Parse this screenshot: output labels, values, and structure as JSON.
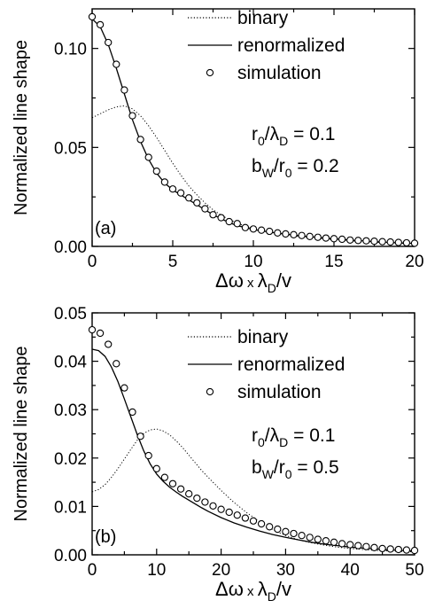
{
  "chart_data": [
    {
      "type": "line",
      "panel_label": "(a)",
      "xlabel": {
        "main": "Δω x λ",
        "sub": "D",
        "tail": "/v"
      },
      "ylabel": "Normalized line shape",
      "xlim": [
        0,
        20
      ],
      "ylim": [
        0,
        0.12
      ],
      "xticks": [
        0,
        5,
        10,
        15,
        20
      ],
      "xtick_labels": [
        "0",
        "5",
        "10",
        "15",
        "20"
      ],
      "yticks": [
        0,
        0.05,
        0.1
      ],
      "ytick_labels": [
        "0.00",
        "0.05",
        "0.10"
      ],
      "legend": [
        "binary",
        "renormalized",
        "simulation"
      ],
      "annotations": [
        {
          "base": "r",
          "sub1": "0",
          "mid": "/λ",
          "sub2": "D",
          "tail": " = 0.1"
        },
        {
          "base": "b",
          "sub1": "W",
          "mid": "/r",
          "sub2": "0",
          "tail": " = 0.2"
        }
      ],
      "series": [
        {
          "name": "binary",
          "style": "dotted",
          "x": [
            0,
            0.5,
            1,
            1.5,
            2,
            2.5,
            3,
            3.5,
            4,
            4.5,
            5,
            5.5,
            6,
            6.5,
            7,
            7.5,
            8,
            8.5,
            9,
            9.5,
            10,
            11,
            12,
            13,
            14,
            15,
            16,
            17,
            18,
            19,
            20
          ],
          "y": [
            0.065,
            0.067,
            0.069,
            0.0705,
            0.071,
            0.0695,
            0.066,
            0.061,
            0.055,
            0.0485,
            0.042,
            0.036,
            0.0305,
            0.026,
            0.022,
            0.0185,
            0.0158,
            0.0135,
            0.0117,
            0.0102,
            0.009,
            0.0072,
            0.006,
            0.0049,
            0.0041,
            0.0034,
            0.0028,
            0.0023,
            0.0019,
            0.0016,
            0.0013
          ]
        },
        {
          "name": "renormalized",
          "style": "solid",
          "x": [
            0,
            0.5,
            1,
            1.5,
            2,
            2.5,
            3,
            3.5,
            4,
            4.5,
            5,
            5.5,
            6,
            6.5,
            7,
            7.5,
            8,
            8.5,
            9,
            9.5,
            10,
            11,
            12,
            13,
            14,
            15,
            16,
            17,
            18,
            19,
            20
          ],
          "y": [
            0.115,
            0.111,
            0.102,
            0.09,
            0.077,
            0.064,
            0.053,
            0.044,
            0.037,
            0.032,
            0.0285,
            0.026,
            0.0235,
            0.021,
            0.0185,
            0.016,
            0.014,
            0.012,
            0.0105,
            0.0095,
            0.0085,
            0.0072,
            0.0062,
            0.0053,
            0.0045,
            0.0038,
            0.0032,
            0.0027,
            0.0022,
            0.0018,
            0.0015
          ]
        },
        {
          "name": "simulation",
          "style": "open-circle",
          "x": [
            0,
            0.5,
            1,
            1.5,
            2,
            2.5,
            3,
            3.5,
            4,
            4.5,
            5,
            5.5,
            6,
            6.5,
            7,
            7.5,
            8,
            8.5,
            9,
            9.5,
            10,
            10.5,
            11,
            11.5,
            12,
            12.5,
            13,
            13.5,
            14,
            14.5,
            15,
            15.5,
            16,
            16.5,
            17,
            17.5,
            18,
            18.5,
            19,
            19.5,
            20
          ],
          "y": [
            0.116,
            0.112,
            0.103,
            0.092,
            0.079,
            0.066,
            0.054,
            0.045,
            0.038,
            0.0325,
            0.029,
            0.027,
            0.0245,
            0.022,
            0.019,
            0.016,
            0.0145,
            0.0125,
            0.0115,
            0.0095,
            0.0088,
            0.0082,
            0.0076,
            0.0068,
            0.0063,
            0.0059,
            0.0055,
            0.005,
            0.0046,
            0.0042,
            0.0039,
            0.0036,
            0.0032,
            0.003,
            0.0028,
            0.0026,
            0.0024,
            0.0022,
            0.002,
            0.0018,
            0.0016
          ]
        }
      ]
    },
    {
      "type": "line",
      "panel_label": "(b)",
      "xlabel": {
        "main": "Δω x λ",
        "sub": "D",
        "tail": "/v"
      },
      "ylabel": "Normalized line shape",
      "xlim": [
        0,
        50
      ],
      "ylim": [
        0,
        0.05
      ],
      "xticks": [
        0,
        10,
        20,
        30,
        40,
        50
      ],
      "xtick_labels": [
        "0",
        "10",
        "20",
        "30",
        "40",
        "50"
      ],
      "yticks": [
        0,
        0.01,
        0.02,
        0.03,
        0.04,
        0.05
      ],
      "ytick_labels": [
        "0.00",
        "0.01",
        "0.02",
        "0.03",
        "0.04",
        "0.05"
      ],
      "legend": [
        "binary",
        "renormalized",
        "simulation"
      ],
      "annotations": [
        {
          "base": "r",
          "sub1": "0",
          "mid": "/λ",
          "sub2": "D",
          "tail": " = 0.1"
        },
        {
          "base": "b",
          "sub1": "W",
          "mid": "/r",
          "sub2": "0",
          "tail": " = 0.5"
        }
      ],
      "series": [
        {
          "name": "binary",
          "style": "dotted",
          "x": [
            0,
            1,
            2,
            3,
            4,
            5,
            6,
            7,
            8,
            9,
            10,
            11,
            12,
            13,
            14,
            15,
            16,
            17,
            18,
            20,
            22,
            24,
            26,
            28,
            30,
            32,
            34,
            36,
            38,
            40,
            42,
            44,
            46,
            48,
            50
          ],
          "y": [
            0.013,
            0.0135,
            0.0145,
            0.016,
            0.0178,
            0.0198,
            0.0218,
            0.0237,
            0.0251,
            0.0258,
            0.026,
            0.0256,
            0.0248,
            0.0236,
            0.0222,
            0.0206,
            0.019,
            0.0174,
            0.016,
            0.0133,
            0.0108,
            0.0087,
            0.0068,
            0.0052,
            0.004,
            0.0031,
            0.0025,
            0.002,
            0.0016,
            0.0013,
            0.0011,
            0.0009,
            0.0008,
            0.0007,
            0.0006
          ]
        },
        {
          "name": "renormalized",
          "style": "solid",
          "x": [
            0,
            1,
            2,
            3,
            4,
            5,
            6,
            7,
            8,
            9,
            10,
            11,
            12,
            13,
            14,
            15,
            16,
            17,
            18,
            20,
            22,
            24,
            26,
            28,
            30,
            32,
            34,
            36,
            38,
            40,
            42,
            44,
            46,
            48,
            50
          ],
          "y": [
            0.0425,
            0.0422,
            0.041,
            0.0388,
            0.0358,
            0.0322,
            0.0285,
            0.0248,
            0.0215,
            0.0188,
            0.0167,
            0.0152,
            0.014,
            0.013,
            0.0121,
            0.0113,
            0.0105,
            0.0097,
            0.009,
            0.0077,
            0.0066,
            0.0057,
            0.0049,
            0.0042,
            0.0036,
            0.0031,
            0.0026,
            0.0022,
            0.0019,
            0.0016,
            0.0014,
            0.0012,
            0.001,
            0.0009,
            0.0008
          ]
        },
        {
          "name": "simulation",
          "style": "open-circle",
          "x": [
            0,
            1.25,
            2.5,
            3.75,
            5,
            6.25,
            7.5,
            8.75,
            10,
            11.25,
            12.5,
            13.75,
            15,
            16.25,
            17.5,
            18.75,
            20,
            21.25,
            22.5,
            23.75,
            25,
            26.25,
            27.5,
            28.75,
            30,
            31.25,
            32.5,
            33.75,
            35,
            36.25,
            37.5,
            38.75,
            40,
            41.25,
            42.5,
            43.75,
            45,
            46.25,
            47.5,
            48.75,
            50
          ],
          "y": [
            0.0465,
            0.0458,
            0.0435,
            0.0395,
            0.0345,
            0.0295,
            0.0245,
            0.0205,
            0.0178,
            0.016,
            0.0147,
            0.0136,
            0.0126,
            0.0117,
            0.0109,
            0.0101,
            0.0094,
            0.0088,
            0.0082,
            0.0076,
            0.007,
            0.0064,
            0.0058,
            0.0053,
            0.0048,
            0.0044,
            0.004,
            0.0036,
            0.0032,
            0.0029,
            0.0026,
            0.0023,
            0.0021,
            0.0019,
            0.0017,
            0.0015,
            0.0013,
            0.0012,
            0.0011,
            0.001,
            0.0009
          ]
        }
      ]
    }
  ]
}
